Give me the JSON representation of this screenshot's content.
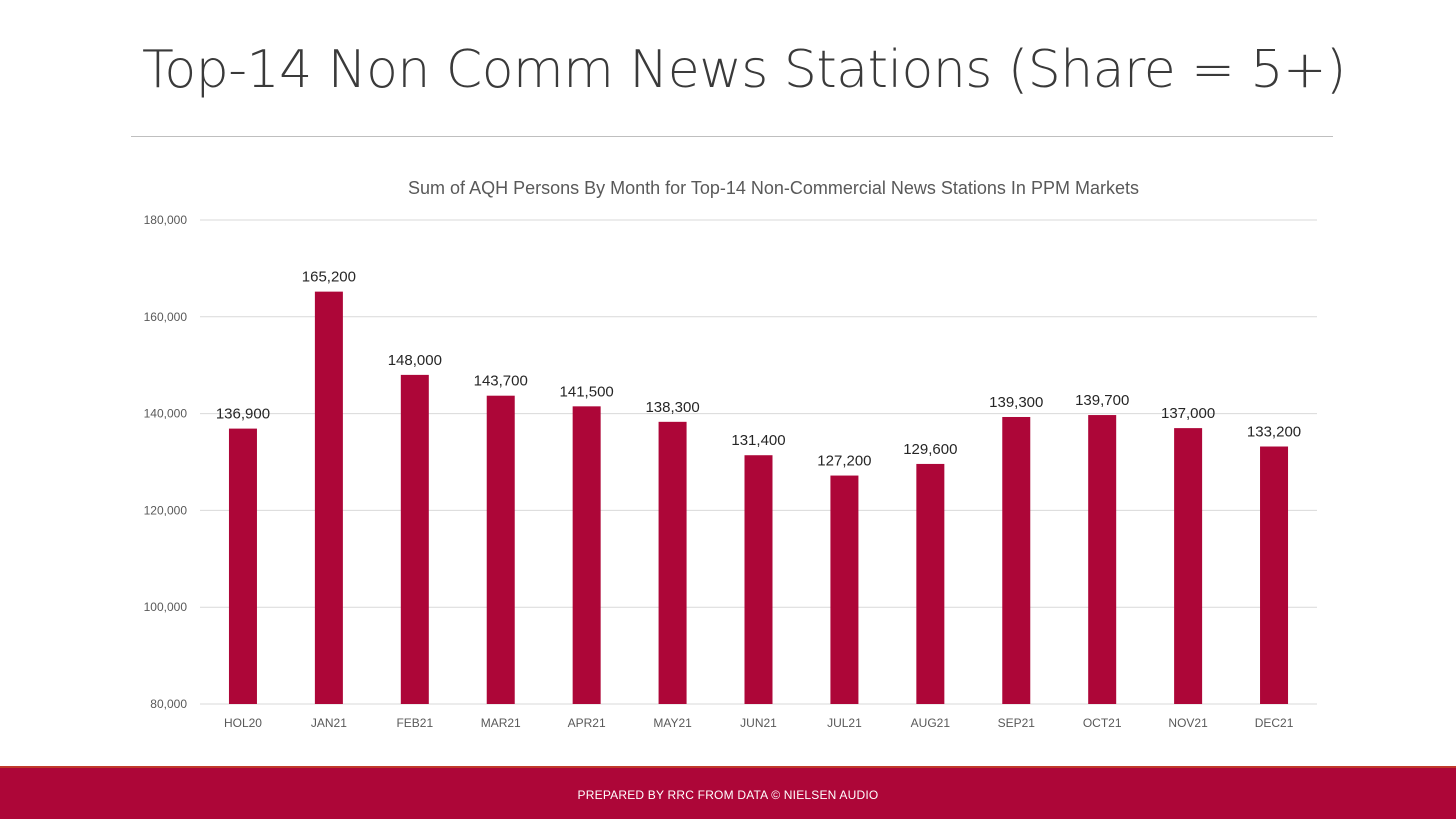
{
  "slide": {
    "title": "Top-14 Non Comm News Stations (Share = 5+)",
    "footer": "PREPARED BY RRC FROM DATA © NIELSEN AUDIO"
  },
  "colors": {
    "bar": "#ad0638",
    "footer_bg": "#ad0638",
    "gridline": "#d9d9d9"
  },
  "chart_data": {
    "type": "bar",
    "title": "Sum of AQH Persons By Month for Top-14 Non-Commercial News Stations In PPM Markets",
    "xlabel": "",
    "ylabel": "",
    "ylim": [
      80000,
      180000
    ],
    "y_ticks": [
      "80,000",
      "100,000",
      "120,000",
      "140,000",
      "160,000",
      "180,000"
    ],
    "y_tick_values": [
      80000,
      100000,
      120000,
      140000,
      160000,
      180000
    ],
    "grid": true,
    "legend": "none",
    "categories": [
      "HOL20",
      "JAN21",
      "FEB21",
      "MAR21",
      "APR21",
      "MAY21",
      "JUN21",
      "JUL21",
      "AUG21",
      "SEP21",
      "OCT21",
      "NOV21",
      "DEC21"
    ],
    "values": [
      136900,
      165200,
      148000,
      143700,
      141500,
      138300,
      131400,
      127200,
      129600,
      139300,
      139700,
      137000,
      133200
    ],
    "data_labels": [
      "136,900",
      "165,200",
      "148,000",
      "143,700",
      "141,500",
      "138,300",
      "131,400",
      "127,200",
      "129,600",
      "139,300",
      "139,700",
      "137,000",
      "133,200"
    ]
  }
}
